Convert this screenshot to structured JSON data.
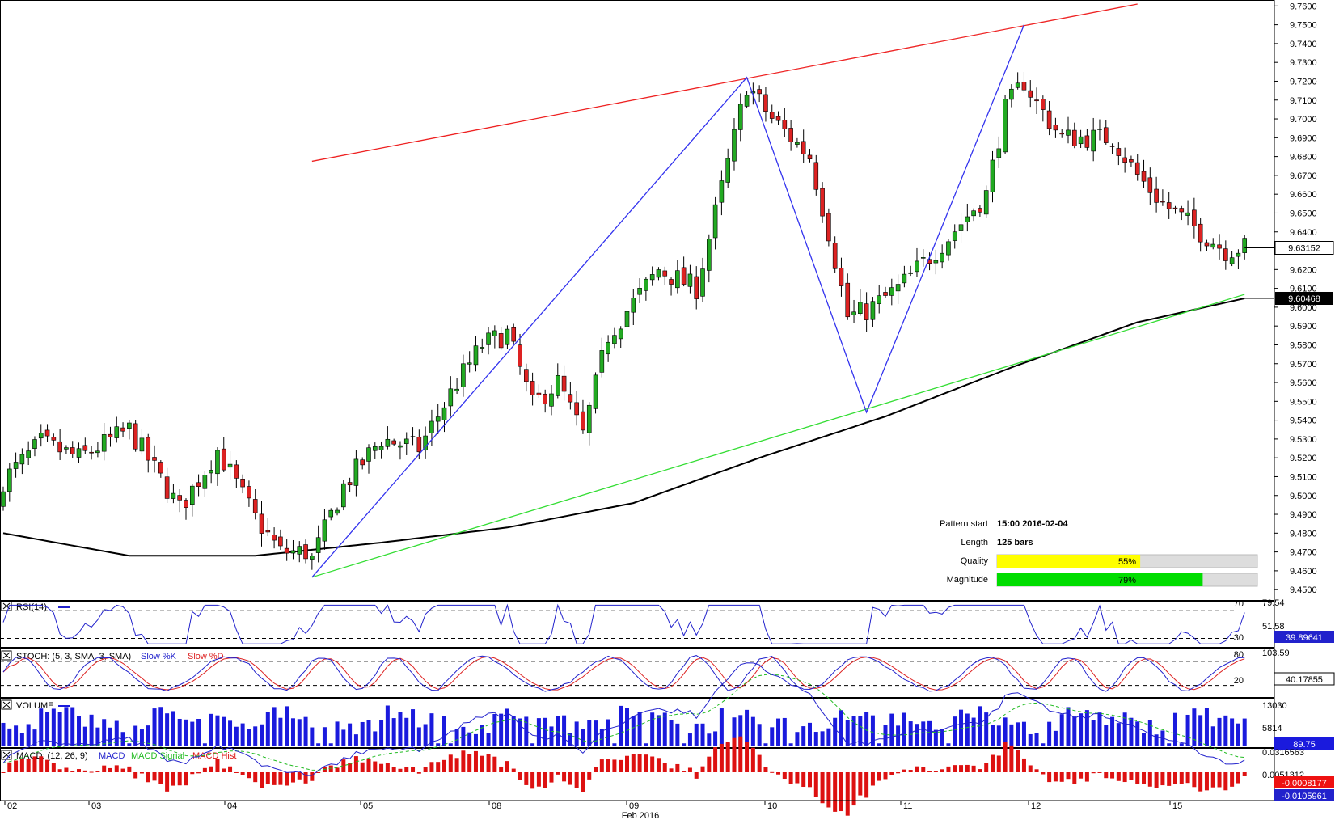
{
  "chart_data": [
    {
      "type": "candlestick",
      "symbol_price_axis": {
        "ticks": [
          "9.7600",
          "9.7500",
          "9.7400",
          "9.7300",
          "9.7200",
          "9.7100",
          "9.7000",
          "9.6900",
          "9.6800",
          "9.6700",
          "9.6600",
          "9.6500",
          "9.6400",
          "9.6300",
          "9.6200",
          "9.6100",
          "9.6000",
          "9.5900",
          "9.5800",
          "9.5700",
          "9.5600",
          "9.5500",
          "9.5400",
          "9.5300",
          "9.5200",
          "9.5100",
          "9.5000",
          "9.4900",
          "9.4800",
          "9.4700",
          "9.4600",
          "9.4500"
        ],
        "ylim": [
          9.4475,
          9.761
        ]
      },
      "current_price_label": "9.63152",
      "current_price": 9.63152,
      "ma_price_label": "9.60468",
      "ma_price": 9.60468,
      "x_axis_labels": [
        "02",
        "03",
        "04",
        "05",
        "08",
        "09",
        "10",
        "11",
        "12",
        "15"
      ],
      "x_axis_month": "Feb 2016",
      "pattern_lines": {
        "resistance": {
          "color": "#ee2222",
          "from": [
            49.0,
            9.6775
          ],
          "to": [
            180.0,
            9.761
          ]
        },
        "support": {
          "color": "#33dd33",
          "from": [
            49.0,
            9.4566
          ],
          "to": [
            197.0,
            9.6068
          ]
        },
        "zigzag": {
          "color": "#3333ee",
          "points": [
            [
              49.0,
              9.4566
            ],
            [
              118.0,
              9.722
            ],
            [
              137.0,
              9.5442
            ],
            [
              162.0,
              9.75
            ]
          ]
        }
      },
      "candles_seed": {
        "count": 198,
        "start": 9.4925
      },
      "pattern_info": {
        "pattern_start_label": "Pattern start",
        "pattern_start_value": "15:00 2016-02-04",
        "length_label": "Length",
        "length_value": "125 bars",
        "quality_label": "Quality",
        "quality_value": "55%",
        "quality": 55,
        "magnitude_label": "Magnitude",
        "magnitude_value": "79%",
        "magnitude": 79
      }
    },
    {
      "type": "line",
      "title": "RSI(14)",
      "levels": [
        "70",
        "30"
      ],
      "right_labels": {
        "top": "79.54",
        "mid": "51.58",
        "current": "39.89641"
      },
      "ylim": [
        20,
        82
      ]
    },
    {
      "type": "line",
      "title": "STOCH: (5, 3, SMA, 3, SMA)",
      "series_names": [
        "Slow %K",
        "Slow %D"
      ],
      "levels": [
        "80",
        "20"
      ],
      "right_labels": {
        "top": "103.59",
        "current": "40.17855"
      },
      "ylim": [
        -5,
        110
      ]
    },
    {
      "type": "bar",
      "title": "VOLUME",
      "right_labels": {
        "top": "13030",
        "mid": "5814",
        "current": "89.75"
      },
      "ylim": [
        0,
        13030
      ]
    },
    {
      "type": "line",
      "title": "MACD: (12, 26, 9)",
      "series_names": [
        "MACD",
        "MACD Signal",
        "MACD Hist"
      ],
      "right_labels": {
        "top": "0.0316563",
        "mid": "0.0051312",
        "signal": "-0.0008177",
        "current": "-0.0105961"
      }
    }
  ],
  "colors": {
    "bull": "#22aa22",
    "bear": "#dd2222",
    "ma": "#000000",
    "rsi": "#2222cc",
    "stoch_k": "#2222cc",
    "stoch_d": "#dd2222",
    "volume": "#1a1add",
    "macd": "#2222cc",
    "signal": "#22bb22",
    "hist": "#dd1111",
    "quality_fill": "#ffff00",
    "magnitude_fill": "#00dd00",
    "bar_bg": "#dddddd"
  }
}
